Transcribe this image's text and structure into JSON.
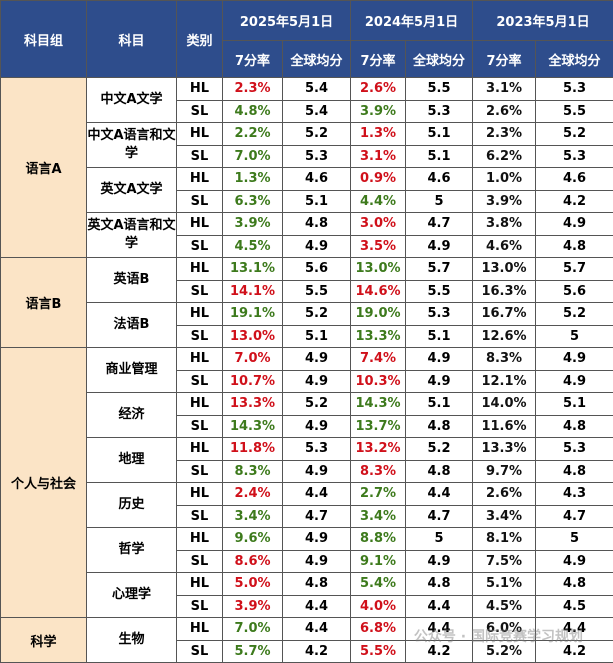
{
  "header": {
    "group": "科目组",
    "subject": "科目",
    "level": "类别",
    "years": [
      {
        "label": "2025年5月1日",
        "rate": "7分率",
        "avg": "全球均分"
      },
      {
        "label": "2024年5月1日",
        "rate": "7分率",
        "avg": "全球均分"
      },
      {
        "label": "2023年5月1日",
        "rate": "7分率",
        "avg": "全球均分"
      }
    ]
  },
  "groups": [
    {
      "name": "语言A",
      "subjects": [
        {
          "name": "中文A文学",
          "rows": [
            {
              "level": "HL",
              "cells": [
                {
                  "rate": "2.3%",
                  "avg": "5.4",
                  "color": "red"
                },
                {
                  "rate": "2.6%",
                  "avg": "5.5",
                  "color": "red"
                },
                {
                  "rate": "3.1%",
                  "avg": "5.3",
                  "color": "black"
                }
              ]
            },
            {
              "level": "SL",
              "cells": [
                {
                  "rate": "4.8%",
                  "avg": "5.4",
                  "color": "green"
                },
                {
                  "rate": "3.9%",
                  "avg": "5.3",
                  "color": "green"
                },
                {
                  "rate": "2.6%",
                  "avg": "5.5",
                  "color": "black"
                }
              ]
            }
          ]
        },
        {
          "name": "中文A语言和文学",
          "rows": [
            {
              "level": "HL",
              "cells": [
                {
                  "rate": "2.2%",
                  "avg": "5.2",
                  "color": "green"
                },
                {
                  "rate": "1.3%",
                  "avg": "5.1",
                  "color": "red"
                },
                {
                  "rate": "2.3%",
                  "avg": "5.2",
                  "color": "black"
                }
              ]
            },
            {
              "level": "SL",
              "cells": [
                {
                  "rate": "7.0%",
                  "avg": "5.3",
                  "color": "green"
                },
                {
                  "rate": "3.1%",
                  "avg": "5.1",
                  "color": "red"
                },
                {
                  "rate": "6.2%",
                  "avg": "5.3",
                  "color": "black"
                }
              ]
            }
          ]
        },
        {
          "name": "英文A文学",
          "rows": [
            {
              "level": "HL",
              "cells": [
                {
                  "rate": "1.3%",
                  "avg": "4.6",
                  "color": "green"
                },
                {
                  "rate": "0.9%",
                  "avg": "4.6",
                  "color": "red"
                },
                {
                  "rate": "1.0%",
                  "avg": "4.6",
                  "color": "black"
                }
              ]
            },
            {
              "level": "SL",
              "cells": [
                {
                  "rate": "6.3%",
                  "avg": "5.1",
                  "color": "green"
                },
                {
                  "rate": "4.4%",
                  "avg": "5",
                  "color": "green"
                },
                {
                  "rate": "3.9%",
                  "avg": "4.2",
                  "color": "black"
                }
              ]
            }
          ]
        },
        {
          "name": "英文A语言和文学",
          "rows": [
            {
              "level": "HL",
              "cells": [
                {
                  "rate": "3.9%",
                  "avg": "4.8",
                  "color": "green"
                },
                {
                  "rate": "3.0%",
                  "avg": "4.7",
                  "color": "red"
                },
                {
                  "rate": "3.8%",
                  "avg": "4.9",
                  "color": "black"
                }
              ]
            },
            {
              "level": "SL",
              "cells": [
                {
                  "rate": "4.5%",
                  "avg": "4.9",
                  "color": "green"
                },
                {
                  "rate": "3.5%",
                  "avg": "4.9",
                  "color": "red"
                },
                {
                  "rate": "4.6%",
                  "avg": "4.8",
                  "color": "black"
                }
              ]
            }
          ]
        }
      ]
    },
    {
      "name": "语言B",
      "subjects": [
        {
          "name": "英语B",
          "rows": [
            {
              "level": "HL",
              "cells": [
                {
                  "rate": "13.1%",
                  "avg": "5.6",
                  "color": "green"
                },
                {
                  "rate": "13.0%",
                  "avg": "5.7",
                  "color": "green"
                },
                {
                  "rate": "13.0%",
                  "avg": "5.7",
                  "color": "black"
                }
              ]
            },
            {
              "level": "SL",
              "cells": [
                {
                  "rate": "14.1%",
                  "avg": "5.5",
                  "color": "red"
                },
                {
                  "rate": "14.6%",
                  "avg": "5.5",
                  "color": "red"
                },
                {
                  "rate": "16.3%",
                  "avg": "5.6",
                  "color": "black"
                }
              ]
            }
          ]
        },
        {
          "name": "法语B",
          "rows": [
            {
              "level": "HL",
              "cells": [
                {
                  "rate": "19.1%",
                  "avg": "5.2",
                  "color": "green"
                },
                {
                  "rate": "19.0%",
                  "avg": "5.3",
                  "color": "green"
                },
                {
                  "rate": "16.7%",
                  "avg": "5.2",
                  "color": "black"
                }
              ]
            },
            {
              "level": "SL",
              "cells": [
                {
                  "rate": "13.0%",
                  "avg": "5.1",
                  "color": "red"
                },
                {
                  "rate": "13.3%",
                  "avg": "5.1",
                  "color": "green"
                },
                {
                  "rate": "12.6%",
                  "avg": "5",
                  "color": "black"
                }
              ]
            }
          ]
        }
      ]
    },
    {
      "name": "个人与社会",
      "subjects": [
        {
          "name": "商业管理",
          "rows": [
            {
              "level": "HL",
              "cells": [
                {
                  "rate": "7.0%",
                  "avg": "4.9",
                  "color": "red"
                },
                {
                  "rate": "7.4%",
                  "avg": "4.9",
                  "color": "red"
                },
                {
                  "rate": "8.3%",
                  "avg": "4.9",
                  "color": "black"
                }
              ]
            },
            {
              "level": "SL",
              "cells": [
                {
                  "rate": "10.7%",
                  "avg": "4.9",
                  "color": "red"
                },
                {
                  "rate": "10.3%",
                  "avg": "4.9",
                  "color": "red"
                },
                {
                  "rate": "12.1%",
                  "avg": "4.9",
                  "color": "black"
                }
              ]
            }
          ]
        },
        {
          "name": "经济",
          "rows": [
            {
              "level": "HL",
              "cells": [
                {
                  "rate": "13.3%",
                  "avg": "5.2",
                  "color": "red"
                },
                {
                  "rate": "14.3%",
                  "avg": "5.1",
                  "color": "green"
                },
                {
                  "rate": "14.0%",
                  "avg": "5.1",
                  "color": "black"
                }
              ]
            },
            {
              "level": "SL",
              "cells": [
                {
                  "rate": "14.3%",
                  "avg": "4.9",
                  "color": "green"
                },
                {
                  "rate": "13.7%",
                  "avg": "4.8",
                  "color": "green"
                },
                {
                  "rate": "11.6%",
                  "avg": "4.8",
                  "color": "black"
                }
              ]
            }
          ]
        },
        {
          "name": "地理",
          "rows": [
            {
              "level": "HL",
              "cells": [
                {
                  "rate": "11.8%",
                  "avg": "5.3",
                  "color": "red"
                },
                {
                  "rate": "13.2%",
                  "avg": "5.2",
                  "color": "red"
                },
                {
                  "rate": "13.3%",
                  "avg": "5.3",
                  "color": "black"
                }
              ]
            },
            {
              "level": "SL",
              "cells": [
                {
                  "rate": "8.3%",
                  "avg": "4.9",
                  "color": "green"
                },
                {
                  "rate": "8.3%",
                  "avg": "4.8",
                  "color": "red"
                },
                {
                  "rate": "9.7%",
                  "avg": "4.8",
                  "color": "black"
                }
              ]
            }
          ]
        },
        {
          "name": "历史",
          "rows": [
            {
              "level": "HL",
              "cells": [
                {
                  "rate": "2.4%",
                  "avg": "4.4",
                  "color": "red"
                },
                {
                  "rate": "2.7%",
                  "avg": "4.4",
                  "color": "green"
                },
                {
                  "rate": "2.6%",
                  "avg": "4.3",
                  "color": "black"
                }
              ]
            },
            {
              "level": "SL",
              "cells": [
                {
                  "rate": "3.4%",
                  "avg": "4.7",
                  "color": "green"
                },
                {
                  "rate": "3.4%",
                  "avg": "4.7",
                  "color": "green"
                },
                {
                  "rate": "3.4%",
                  "avg": "4.7",
                  "color": "black"
                }
              ]
            }
          ]
        },
        {
          "name": "哲学",
          "rows": [
            {
              "level": "HL",
              "cells": [
                {
                  "rate": "9.6%",
                  "avg": "4.9",
                  "color": "green"
                },
                {
                  "rate": "8.8%",
                  "avg": "5",
                  "color": "green"
                },
                {
                  "rate": "8.1%",
                  "avg": "5",
                  "color": "black"
                }
              ]
            },
            {
              "level": "SL",
              "cells": [
                {
                  "rate": "8.6%",
                  "avg": "4.9",
                  "color": "red"
                },
                {
                  "rate": "9.1%",
                  "avg": "4.9",
                  "color": "green"
                },
                {
                  "rate": "7.5%",
                  "avg": "4.9",
                  "color": "black"
                }
              ]
            }
          ]
        },
        {
          "name": "心理学",
          "rows": [
            {
              "level": "HL",
              "cells": [
                {
                  "rate": "5.0%",
                  "avg": "4.8",
                  "color": "red"
                },
                {
                  "rate": "5.4%",
                  "avg": "4.8",
                  "color": "green"
                },
                {
                  "rate": "5.1%",
                  "avg": "4.8",
                  "color": "black"
                }
              ]
            },
            {
              "level": "SL",
              "cells": [
                {
                  "rate": "3.9%",
                  "avg": "4.4",
                  "color": "red"
                },
                {
                  "rate": "4.0%",
                  "avg": "4.4",
                  "color": "red"
                },
                {
                  "rate": "4.5%",
                  "avg": "4.5",
                  "color": "black"
                }
              ]
            }
          ]
        }
      ]
    },
    {
      "name": "科学",
      "subjects": [
        {
          "name": "生物",
          "rows": [
            {
              "level": "HL",
              "cells": [
                {
                  "rate": "7.0%",
                  "avg": "4.4",
                  "color": "green"
                },
                {
                  "rate": "6.8%",
                  "avg": "4.4",
                  "color": "red"
                },
                {
                  "rate": "6.0%",
                  "avg": "4.4",
                  "color": "black"
                }
              ]
            },
            {
              "level": "SL",
              "cells": [
                {
                  "rate": "5.7%",
                  "avg": "4.2",
                  "color": "green"
                },
                {
                  "rate": "5.5%",
                  "avg": "4.2",
                  "color": "red"
                },
                {
                  "rate": "5.2%",
                  "avg": "4.2",
                  "color": "black"
                }
              ]
            }
          ]
        }
      ]
    }
  ],
  "watermark": "公众号 · 国际竞赛学习规划"
}
